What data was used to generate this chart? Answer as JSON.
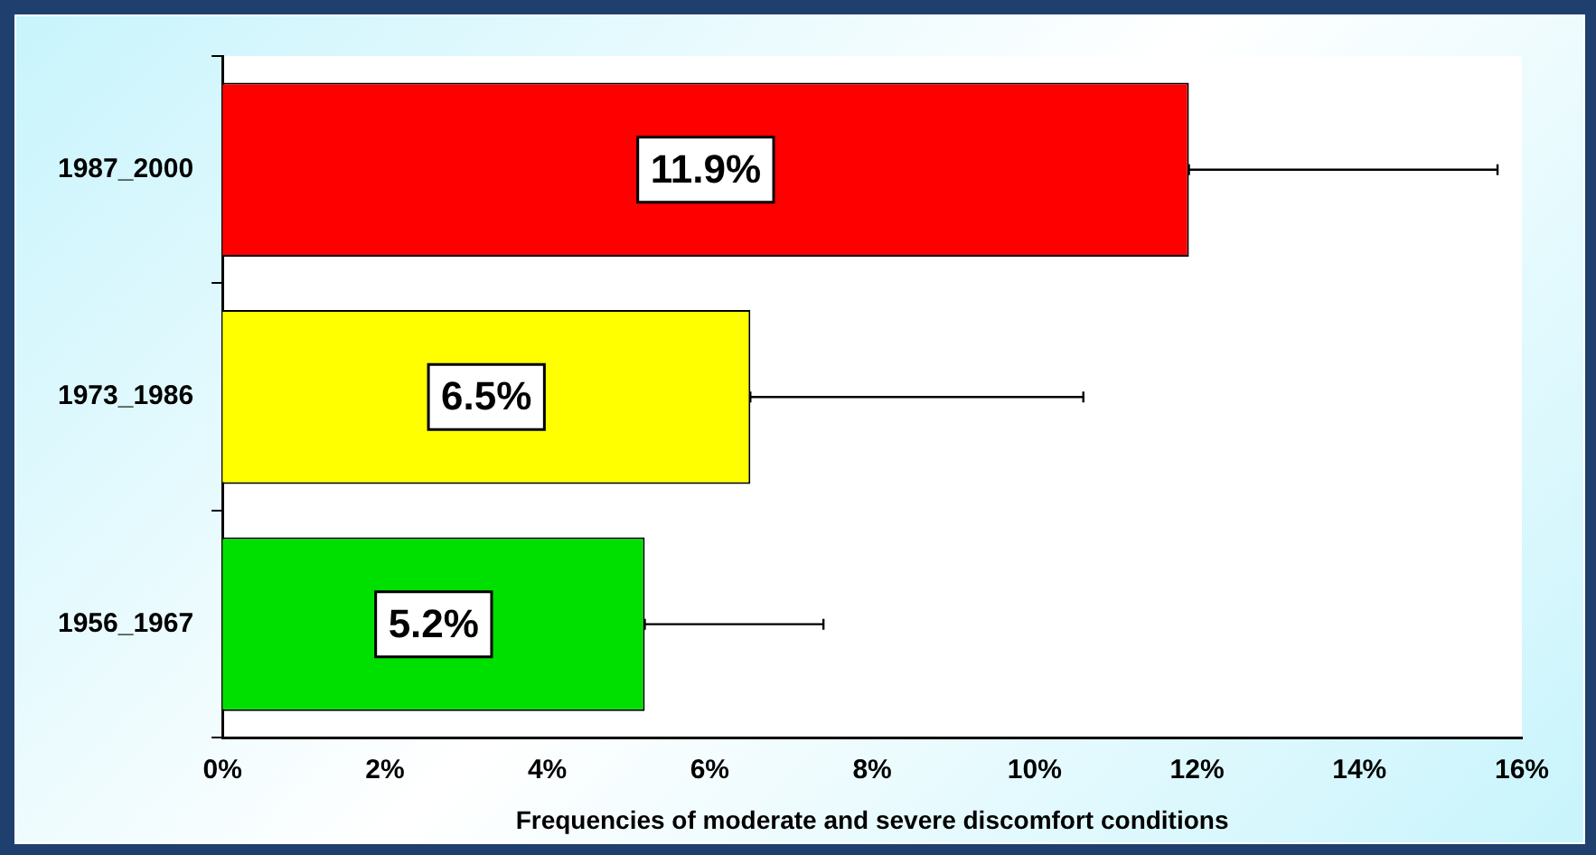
{
  "chart_data": {
    "type": "bar",
    "orientation": "horizontal",
    "xlabel": "Frequencies of moderate and severe discomfort conditions",
    "categories": [
      "1987_2000",
      "1973_1986",
      "1956_1967"
    ],
    "values": [
      11.9,
      6.5,
      5.2
    ],
    "colors": [
      "#ff0000",
      "#ffff00",
      "#00e000"
    ],
    "value_labels": [
      "11.9%",
      "6.5%",
      "5.2%"
    ],
    "errors": [
      [
        11.9,
        15.7
      ],
      [
        6.5,
        10.6
      ],
      [
        5.2,
        7.4
      ]
    ],
    "xlim": [
      0,
      16
    ],
    "xticks": [
      {
        "value": 0,
        "label": "0%"
      },
      {
        "value": 2,
        "label": "2%"
      },
      {
        "value": 4,
        "label": "4%"
      },
      {
        "value": 6,
        "label": "6%"
      },
      {
        "value": 8,
        "label": "8%"
      },
      {
        "value": 10,
        "label": "10%"
      },
      {
        "value": 12,
        "label": "12%"
      },
      {
        "value": 14,
        "label": "14%"
      },
      {
        "value": 16,
        "label": "16%"
      }
    ],
    "grid": false,
    "legend": false
  }
}
